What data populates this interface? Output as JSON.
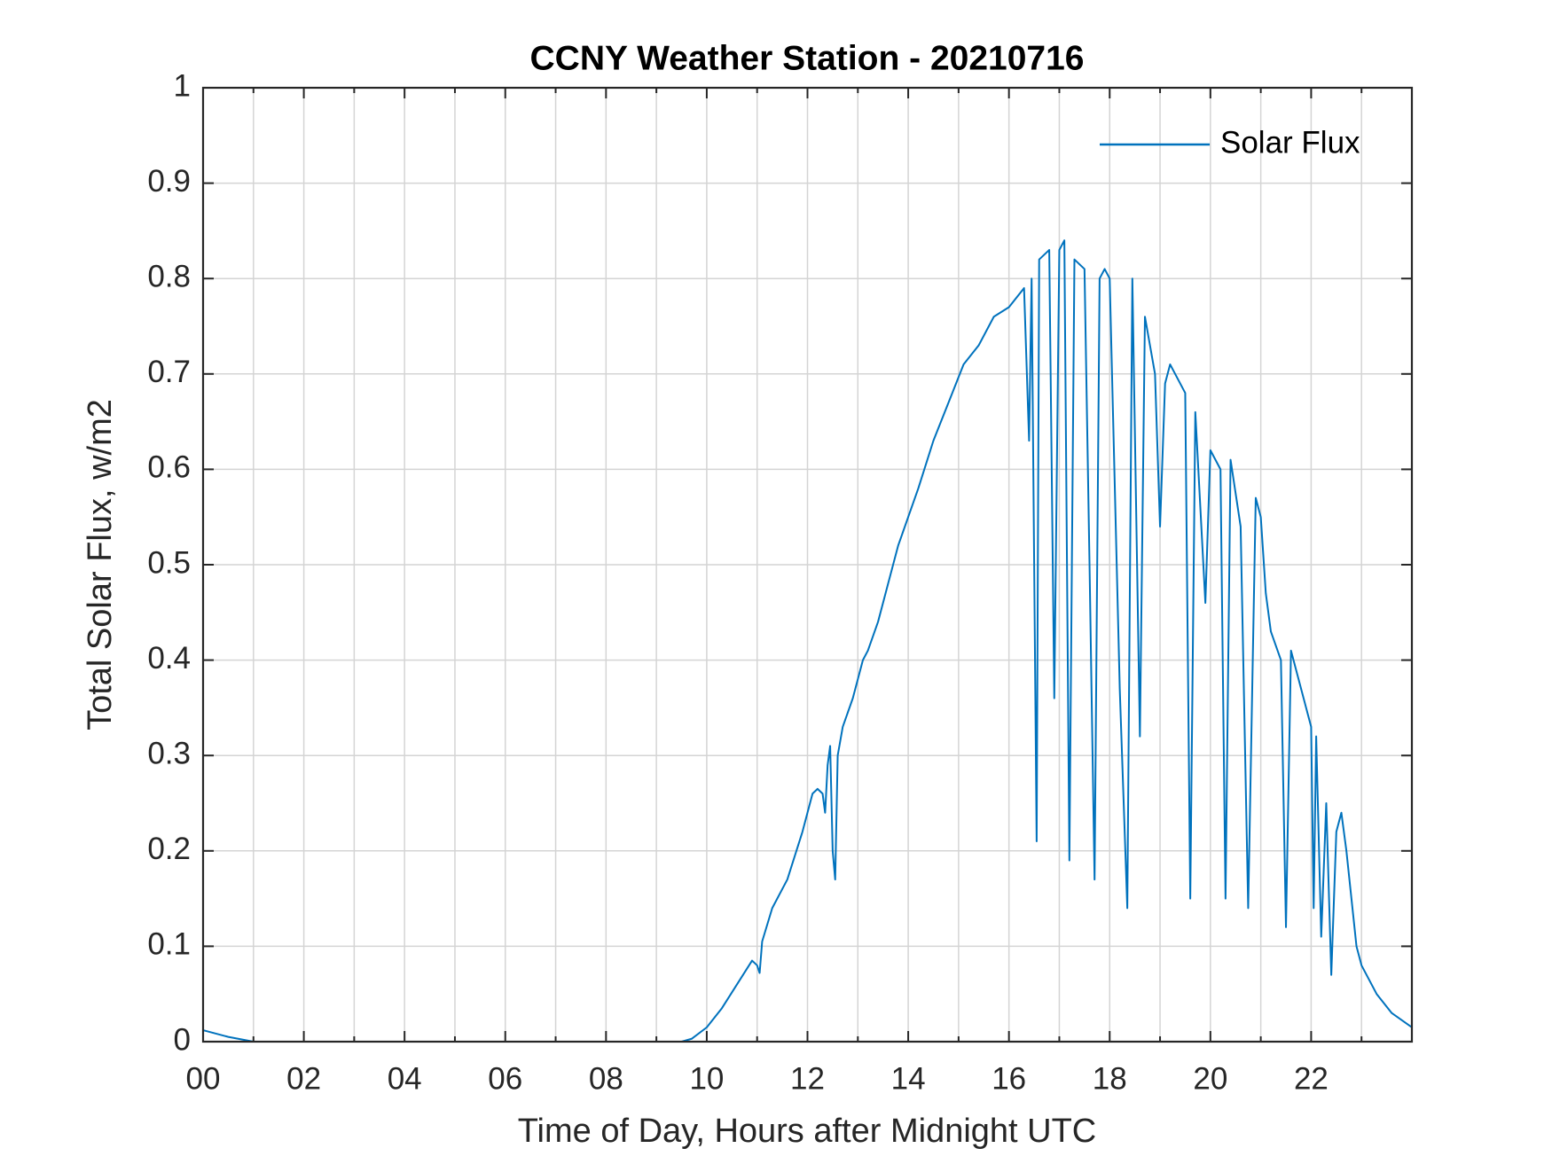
{
  "chart_data": {
    "type": "line",
    "title": "CCNY Weather Station - 20210716",
    "xlabel": "Time of Day, Hours after Midnight UTC",
    "ylabel": "Total Solar Flux, w/m2",
    "x": [
      0,
      0.5,
      1.0,
      2,
      3,
      4,
      5,
      6,
      7,
      8,
      9,
      9.5,
      9.7,
      10.0,
      10.3,
      10.6,
      10.9,
      11.0,
      11.05,
      11.1,
      11.3,
      11.6,
      11.9,
      12.1,
      12.2,
      12.3,
      12.35,
      12.4,
      12.45,
      12.5,
      12.55,
      12.6,
      12.7,
      12.9,
      13.1,
      13.2,
      13.4,
      13.6,
      13.8,
      14.0,
      14.2,
      14.5,
      14.8,
      15.1,
      15.4,
      15.7,
      16.0,
      16.3,
      16.4,
      16.45,
      16.55,
      16.6,
      16.8,
      16.9,
      17.0,
      17.1,
      17.2,
      17.3,
      17.5,
      17.6,
      17.7,
      17.8,
      17.9,
      18.0,
      18.2,
      18.35,
      18.45,
      18.6,
      18.7,
      18.9,
      19.0,
      19.1,
      19.2,
      19.5,
      19.6,
      19.7,
      19.9,
      20.0,
      20.1,
      20.2,
      20.3,
      20.4,
      20.6,
      20.75,
      20.9,
      21.0,
      21.1,
      21.2,
      21.4,
      21.5,
      21.6,
      21.8,
      22.0,
      22.05,
      22.1,
      22.2,
      22.3,
      22.4,
      22.5,
      22.6,
      22.7,
      22.8,
      22.9,
      23.0,
      23.3,
      23.6,
      24.0
    ],
    "series": [
      {
        "name": "Solar Flux",
        "color": "#0072bd",
        "values": [
          0.012,
          0.005,
          0,
          0,
          0,
          0,
          0,
          0,
          0,
          0,
          0,
          0,
          0.003,
          0.015,
          0.035,
          0.06,
          0.085,
          0.08,
          0.072,
          0.105,
          0.14,
          0.17,
          0.22,
          0.26,
          0.265,
          0.26,
          0.24,
          0.29,
          0.31,
          0.2,
          0.17,
          0.3,
          0.33,
          0.36,
          0.4,
          0.41,
          0.44,
          0.48,
          0.52,
          0.55,
          0.58,
          0.63,
          0.67,
          0.71,
          0.73,
          0.76,
          0.77,
          0.79,
          0.63,
          0.8,
          0.21,
          0.82,
          0.83,
          0.36,
          0.83,
          0.84,
          0.19,
          0.82,
          0.81,
          0.5,
          0.17,
          0.8,
          0.81,
          0.8,
          0.37,
          0.14,
          0.8,
          0.32,
          0.76,
          0.7,
          0.54,
          0.69,
          0.71,
          0.68,
          0.15,
          0.66,
          0.46,
          0.62,
          0.61,
          0.6,
          0.15,
          0.61,
          0.54,
          0.14,
          0.57,
          0.55,
          0.47,
          0.43,
          0.4,
          0.12,
          0.41,
          0.37,
          0.33,
          0.14,
          0.32,
          0.11,
          0.25,
          0.07,
          0.22,
          0.24,
          0.2,
          0.15,
          0.1,
          0.08,
          0.05,
          0.03,
          0.015
        ]
      }
    ],
    "xlim": [
      0,
      24
    ],
    "xticks": [
      {
        "value": 0,
        "label": "00"
      },
      {
        "value": 2,
        "label": "02"
      },
      {
        "value": 4,
        "label": "04"
      },
      {
        "value": 6,
        "label": "06"
      },
      {
        "value": 8,
        "label": "08"
      },
      10,
      12,
      14,
      16,
      18,
      20,
      22
    ],
    "xminorticks": [
      1,
      3,
      5,
      7,
      9,
      11,
      13,
      15,
      17,
      19,
      21,
      23
    ],
    "ylim": [
      0,
      1
    ],
    "yticks": [
      0,
      0.1,
      0.2,
      0.3,
      0.4,
      0.5,
      0.6,
      0.7,
      0.8,
      0.9,
      1
    ],
    "grid": true,
    "legend": "northeast"
  }
}
